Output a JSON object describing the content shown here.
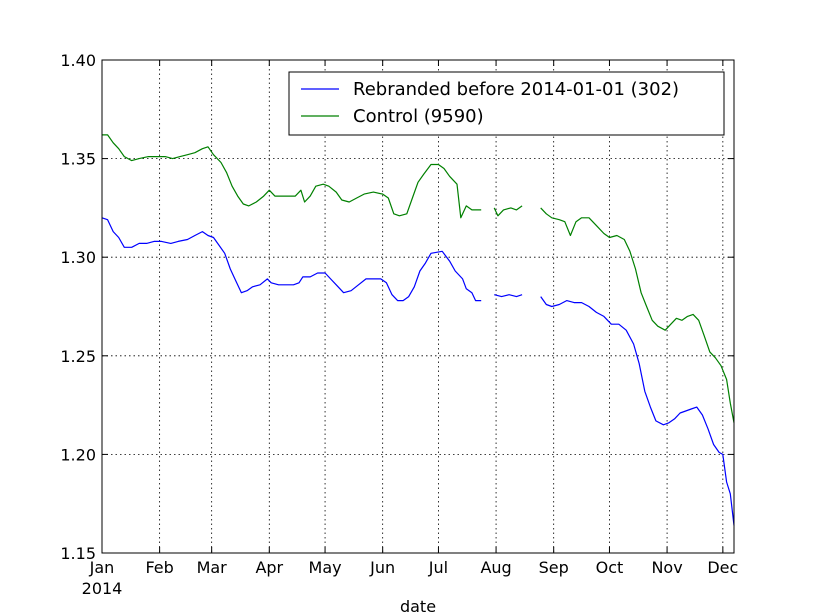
{
  "chart_data": {
    "type": "line",
    "title": "",
    "xlabel": "date",
    "ylabel": "",
    "ylim": [
      1.15,
      1.4
    ],
    "yticks": [
      "1.15",
      "1.20",
      "1.25",
      "1.30",
      "1.35",
      "1.40"
    ],
    "xlim": [
      "2014-01-01",
      "2014-12-07"
    ],
    "xticks": [
      {
        "date": "2014-01-01",
        "label": "Jan",
        "sublabel": "2014"
      },
      {
        "date": "2014-02-01",
        "label": "Feb"
      },
      {
        "date": "2014-03-01",
        "label": "Mar"
      },
      {
        "date": "2014-04-01",
        "label": "Apr"
      },
      {
        "date": "2014-05-01",
        "label": "May"
      },
      {
        "date": "2014-06-01",
        "label": "Jun"
      },
      {
        "date": "2014-07-01",
        "label": "Jul"
      },
      {
        "date": "2014-08-01",
        "label": "Aug"
      },
      {
        "date": "2014-09-01",
        "label": "Sep"
      },
      {
        "date": "2014-10-01",
        "label": "Oct"
      },
      {
        "date": "2014-11-01",
        "label": "Nov"
      },
      {
        "date": "2014-12-01",
        "label": "Dec"
      }
    ],
    "grid": true,
    "legend_position": "top-right",
    "series": [
      {
        "name": "Rebranded before 2014-01-01 (302)",
        "color": "#0000ff",
        "segments": [
          [
            [
              "2014-01-01",
              1.32
            ],
            [
              "2014-01-04",
              1.319
            ],
            [
              "2014-01-07",
              1.313
            ],
            [
              "2014-01-10",
              1.31
            ],
            [
              "2014-01-13",
              1.305
            ],
            [
              "2014-01-17",
              1.305
            ],
            [
              "2014-01-21",
              1.307
            ],
            [
              "2014-01-25",
              1.307
            ],
            [
              "2014-01-29",
              1.308
            ],
            [
              "2014-02-02",
              1.308
            ],
            [
              "2014-02-07",
              1.307
            ],
            [
              "2014-02-11",
              1.308
            ],
            [
              "2014-02-16",
              1.309
            ],
            [
              "2014-02-20",
              1.311
            ],
            [
              "2014-02-24",
              1.313
            ],
            [
              "2014-02-27",
              1.311
            ],
            [
              "2014-03-02",
              1.31
            ],
            [
              "2014-03-05",
              1.306
            ],
            [
              "2014-03-08",
              1.302
            ],
            [
              "2014-03-11",
              1.294
            ],
            [
              "2014-03-14",
              1.288
            ],
            [
              "2014-03-17",
              1.282
            ],
            [
              "2014-03-20",
              1.283
            ],
            [
              "2014-03-23",
              1.285
            ],
            [
              "2014-03-27",
              1.286
            ],
            [
              "2014-03-31",
              1.289
            ],
            [
              "2014-04-02",
              1.287
            ],
            [
              "2014-04-06",
              1.286
            ],
            [
              "2014-04-10",
              1.286
            ],
            [
              "2014-04-14",
              1.286
            ],
            [
              "2014-04-17",
              1.287
            ],
            [
              "2014-04-19",
              1.29
            ],
            [
              "2014-04-23",
              1.29
            ],
            [
              "2014-04-27",
              1.292
            ],
            [
              "2014-05-01",
              1.292
            ],
            [
              "2014-05-04",
              1.289
            ],
            [
              "2014-05-08",
              1.285
            ],
            [
              "2014-05-11",
              1.282
            ],
            [
              "2014-05-15",
              1.283
            ],
            [
              "2014-05-19",
              1.286
            ],
            [
              "2014-05-23",
              1.289
            ],
            [
              "2014-05-27",
              1.289
            ],
            [
              "2014-05-31",
              1.289
            ],
            [
              "2014-06-03",
              1.287
            ],
            [
              "2014-06-06",
              1.281
            ],
            [
              "2014-06-09",
              1.278
            ],
            [
              "2014-06-12",
              1.278
            ],
            [
              "2014-06-15",
              1.28
            ],
            [
              "2014-06-18",
              1.285
            ],
            [
              "2014-06-21",
              1.293
            ],
            [
              "2014-06-24",
              1.297
            ],
            [
              "2014-06-27",
              1.302
            ],
            [
              "2014-07-03",
              1.303
            ],
            [
              "2014-07-07",
              1.298
            ],
            [
              "2014-07-10",
              1.293
            ],
            [
              "2014-07-14",
              1.289
            ],
            [
              "2014-07-16",
              1.284
            ],
            [
              "2014-07-19",
              1.282
            ],
            [
              "2014-07-21",
              1.278
            ],
            [
              "2014-07-24",
              1.278
            ]
          ],
          [
            [
              "2014-07-31",
              1.281
            ],
            [
              "2014-08-04",
              1.28
            ],
            [
              "2014-08-08",
              1.281
            ],
            [
              "2014-08-12",
              1.28
            ],
            [
              "2014-08-15",
              1.281
            ]
          ],
          [
            [
              "2014-08-25",
              1.28
            ],
            [
              "2014-08-28",
              1.276
            ],
            [
              "2014-08-31",
              1.275
            ],
            [
              "2014-09-04",
              1.276
            ],
            [
              "2014-09-08",
              1.278
            ],
            [
              "2014-09-12",
              1.277
            ],
            [
              "2014-09-16",
              1.277
            ],
            [
              "2014-09-20",
              1.275
            ],
            [
              "2014-09-24",
              1.272
            ],
            [
              "2014-09-28",
              1.27
            ],
            [
              "2014-10-02",
              1.266
            ],
            [
              "2014-10-06",
              1.266
            ],
            [
              "2014-10-10",
              1.263
            ],
            [
              "2014-10-14",
              1.256
            ],
            [
              "2014-10-17",
              1.246
            ],
            [
              "2014-10-20",
              1.232
            ],
            [
              "2014-10-23",
              1.224
            ],
            [
              "2014-10-26",
              1.217
            ],
            [
              "2014-10-30",
              1.215
            ],
            [
              "2014-11-02",
              1.216
            ],
            [
              "2014-11-05",
              1.218
            ],
            [
              "2014-11-08",
              1.221
            ],
            [
              "2014-11-11",
              1.222
            ],
            [
              "2014-11-14",
              1.223
            ],
            [
              "2014-11-17",
              1.224
            ],
            [
              "2014-11-20",
              1.22
            ],
            [
              "2014-11-23",
              1.213
            ],
            [
              "2014-11-26",
              1.205
            ],
            [
              "2014-11-29",
              1.201
            ],
            [
              "2014-12-01",
              1.2
            ],
            [
              "2014-12-03",
              1.186
            ],
            [
              "2014-12-05",
              1.18
            ],
            [
              "2014-12-07",
              1.164
            ]
          ]
        ]
      },
      {
        "name": "Control (9590)",
        "color": "#008000",
        "segments": [
          [
            [
              "2014-01-01",
              1.362
            ],
            [
              "2014-01-04",
              1.362
            ],
            [
              "2014-01-07",
              1.358
            ],
            [
              "2014-01-10",
              1.355
            ],
            [
              "2014-01-13",
              1.351
            ],
            [
              "2014-01-17",
              1.349
            ],
            [
              "2014-01-21",
              1.35
            ],
            [
              "2014-01-26",
              1.351
            ],
            [
              "2014-01-31",
              1.351
            ],
            [
              "2014-02-04",
              1.351
            ],
            [
              "2014-02-08",
              1.35
            ],
            [
              "2014-02-12",
              1.351
            ],
            [
              "2014-02-16",
              1.352
            ],
            [
              "2014-02-20",
              1.353
            ],
            [
              "2014-02-24",
              1.355
            ],
            [
              "2014-02-27",
              1.356
            ],
            [
              "2014-03-02",
              1.352
            ],
            [
              "2014-03-06",
              1.348
            ],
            [
              "2014-03-09",
              1.343
            ],
            [
              "2014-03-12",
              1.336
            ],
            [
              "2014-03-15",
              1.331
            ],
            [
              "2014-03-18",
              1.327
            ],
            [
              "2014-03-21",
              1.326
            ],
            [
              "2014-03-25",
              1.328
            ],
            [
              "2014-03-29",
              1.331
            ],
            [
              "2014-04-01",
              1.334
            ],
            [
              "2014-04-04",
              1.331
            ],
            [
              "2014-04-08",
              1.331
            ],
            [
              "2014-04-12",
              1.331
            ],
            [
              "2014-04-15",
              1.331
            ],
            [
              "2014-04-18",
              1.334
            ],
            [
              "2014-04-20",
              1.328
            ],
            [
              "2014-04-23",
              1.331
            ],
            [
              "2014-04-26",
              1.336
            ],
            [
              "2014-04-30",
              1.337
            ],
            [
              "2014-05-03",
              1.336
            ],
            [
              "2014-05-07",
              1.333
            ],
            [
              "2014-05-10",
              1.329
            ],
            [
              "2014-05-14",
              1.328
            ],
            [
              "2014-05-18",
              1.33
            ],
            [
              "2014-05-22",
              1.332
            ],
            [
              "2014-05-27",
              1.333
            ],
            [
              "2014-06-01",
              1.332
            ],
            [
              "2014-06-04",
              1.33
            ],
            [
              "2014-06-07",
              1.322
            ],
            [
              "2014-06-10",
              1.321
            ],
            [
              "2014-06-14",
              1.322
            ],
            [
              "2014-06-17",
              1.33
            ],
            [
              "2014-06-20",
              1.338
            ],
            [
              "2014-06-23",
              1.342
            ],
            [
              "2014-06-27",
              1.347
            ],
            [
              "2014-07-01",
              1.347
            ],
            [
              "2014-07-04",
              1.345
            ],
            [
              "2014-07-07",
              1.341
            ],
            [
              "2014-07-11",
              1.337
            ],
            [
              "2014-07-13",
              1.32
            ],
            [
              "2014-07-16",
              1.326
            ],
            [
              "2014-07-19",
              1.324
            ],
            [
              "2014-07-24",
              1.324
            ]
          ],
          [
            [
              "2014-07-31",
              1.325
            ],
            [
              "2014-08-02",
              1.321
            ],
            [
              "2014-08-05",
              1.324
            ],
            [
              "2014-08-09",
              1.325
            ],
            [
              "2014-08-12",
              1.324
            ],
            [
              "2014-08-15",
              1.326
            ]
          ],
          [
            [
              "2014-08-25",
              1.325
            ],
            [
              "2014-08-28",
              1.322
            ],
            [
              "2014-08-31",
              1.32
            ],
            [
              "2014-09-04",
              1.319
            ],
            [
              "2014-09-07",
              1.318
            ],
            [
              "2014-09-10",
              1.311
            ],
            [
              "2014-09-13",
              1.318
            ],
            [
              "2014-09-16",
              1.32
            ],
            [
              "2014-09-20",
              1.32
            ],
            [
              "2014-09-24",
              1.316
            ],
            [
              "2014-09-28",
              1.312
            ],
            [
              "2014-10-01",
              1.31
            ],
            [
              "2014-10-05",
              1.311
            ],
            [
              "2014-10-09",
              1.309
            ],
            [
              "2014-10-12",
              1.303
            ],
            [
              "2014-10-15",
              1.294
            ],
            [
              "2014-10-18",
              1.282
            ],
            [
              "2014-10-21",
              1.275
            ],
            [
              "2014-10-24",
              1.268
            ],
            [
              "2014-10-27",
              1.265
            ],
            [
              "2014-10-31",
              1.263
            ],
            [
              "2014-11-03",
              1.266
            ],
            [
              "2014-11-06",
              1.269
            ],
            [
              "2014-11-09",
              1.268
            ],
            [
              "2014-11-12",
              1.27
            ],
            [
              "2014-11-15",
              1.271
            ],
            [
              "2014-11-18",
              1.268
            ],
            [
              "2014-11-21",
              1.26
            ],
            [
              "2014-11-24",
              1.252
            ],
            [
              "2014-11-27",
              1.249
            ],
            [
              "2014-11-30",
              1.245
            ],
            [
              "2014-12-03",
              1.238
            ],
            [
              "2014-12-05",
              1.226
            ],
            [
              "2014-12-07",
              1.216
            ]
          ]
        ]
      }
    ]
  }
}
